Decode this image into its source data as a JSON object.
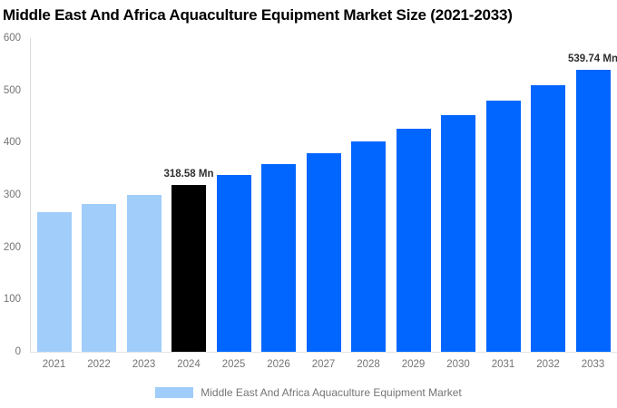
{
  "chart_data": {
    "type": "bar",
    "title": "Middle East And Africa Aquaculture Equipment Market Size (2021-2033)",
    "unit": "Mn",
    "categories": [
      "2021",
      "2022",
      "2023",
      "2024",
      "2025",
      "2026",
      "2027",
      "2028",
      "2029",
      "2030",
      "2031",
      "2032",
      "2033"
    ],
    "values": [
      266.4,
      283.5,
      300.5,
      318.58,
      337.8,
      358.2,
      379.8,
      402.7,
      427.0,
      452.8,
      480.1,
      509.1,
      539.74
    ],
    "bar_roles": [
      "historical",
      "historical",
      "historical",
      "base_year",
      "forecast",
      "forecast",
      "forecast",
      "forecast",
      "forecast",
      "forecast",
      "forecast",
      "forecast",
      "forecast"
    ],
    "colors": {
      "historical": "#A0CDFA",
      "base_year": "#000000",
      "forecast": "#0066FF"
    },
    "annotations": [
      {
        "index": 3,
        "category": "2024",
        "text": "318.58 Mn"
      },
      {
        "index": 12,
        "category": "2033",
        "text": "539.74 Mn"
      }
    ],
    "xlabel": "",
    "ylabel": "",
    "ylim": [
      0,
      600
    ],
    "yticks": [
      0,
      100,
      200,
      300,
      400,
      500,
      600
    ],
    "grid": false,
    "legend": {
      "position": "bottom",
      "label": "Middle East And Africa Aquaculture Equipment Market",
      "swatch_color": "#A0CDFA"
    }
  }
}
